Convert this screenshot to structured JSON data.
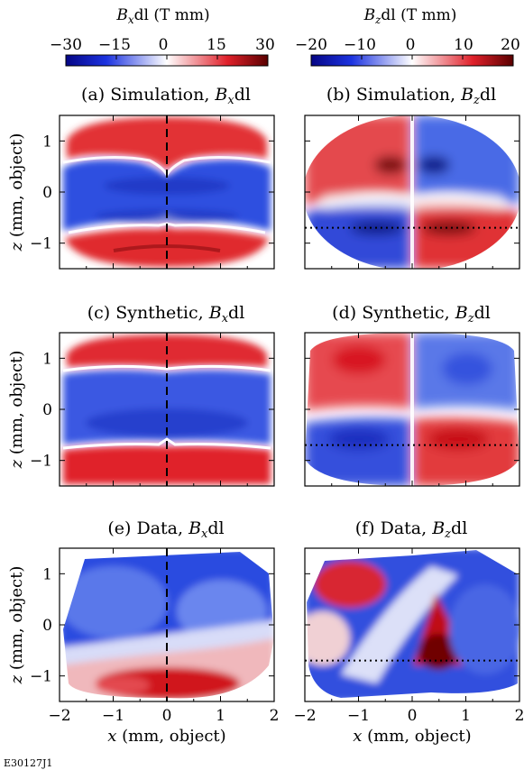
{
  "figure_id": "E30127J1",
  "colorbars": [
    {
      "label_var": "B",
      "label_sub": "x",
      "label_rest": "dl (T mm)",
      "ticks": [
        "−30",
        "−15",
        "0",
        "15",
        "30"
      ],
      "range": [
        -30,
        30
      ],
      "colors": [
        "#1c1ccf",
        "#ffffff",
        "#c8101a"
      ]
    },
    {
      "label_var": "B",
      "label_sub": "z",
      "label_rest": "dl (T mm)",
      "ticks": [
        "−20",
        "−10",
        "0",
        "10",
        "20"
      ],
      "range": [
        -20,
        20
      ],
      "colors": [
        "#1c1ccf",
        "#ffffff",
        "#c8101a"
      ]
    }
  ],
  "panels": [
    {
      "title_prefix": "(a) Simulation, ",
      "var": "B",
      "sub": "x",
      "title_suffix": "dl",
      "overlay": "vertical-dashed"
    },
    {
      "title_prefix": "(b) Simulation, ",
      "var": "B",
      "sub": "z",
      "title_suffix": "dl",
      "overlay": "horizontal-dotted"
    },
    {
      "title_prefix": "(c) Synthetic, ",
      "var": "B",
      "sub": "x",
      "title_suffix": "dl",
      "overlay": "vertical-dashed"
    },
    {
      "title_prefix": "(d) Synthetic, ",
      "var": "B",
      "sub": "z",
      "title_suffix": "dl",
      "overlay": "horizontal-dotted"
    },
    {
      "title_prefix": "(e) Data, ",
      "var": "B",
      "sub": "x",
      "title_suffix": "dl",
      "overlay": "vertical-dashed"
    },
    {
      "title_prefix": "(f) Data, ",
      "var": "B",
      "sub": "z",
      "title_suffix": "dl",
      "overlay": "horizontal-dotted"
    }
  ],
  "axes": {
    "x_ticks": [
      "−2",
      "−1",
      "0",
      "1",
      "2"
    ],
    "z_ticks": [
      "1",
      "0",
      "−1"
    ],
    "xlabel_var": "x",
    "xlabel_rest": " (mm, object)",
    "zlabel_var": "z",
    "zlabel_rest": " (mm, object)"
  },
  "chart_data": {
    "type": "heatmap",
    "x_range": [
      -2,
      2
    ],
    "z_range": [
      -1.5,
      1.5
    ],
    "x_ticks": [
      -2,
      -1,
      0,
      1,
      2
    ],
    "z_ticks": [
      -1,
      0,
      1
    ],
    "vertical_dashed_line_x": 0,
    "horizontal_dotted_line_z": -0.7
  }
}
